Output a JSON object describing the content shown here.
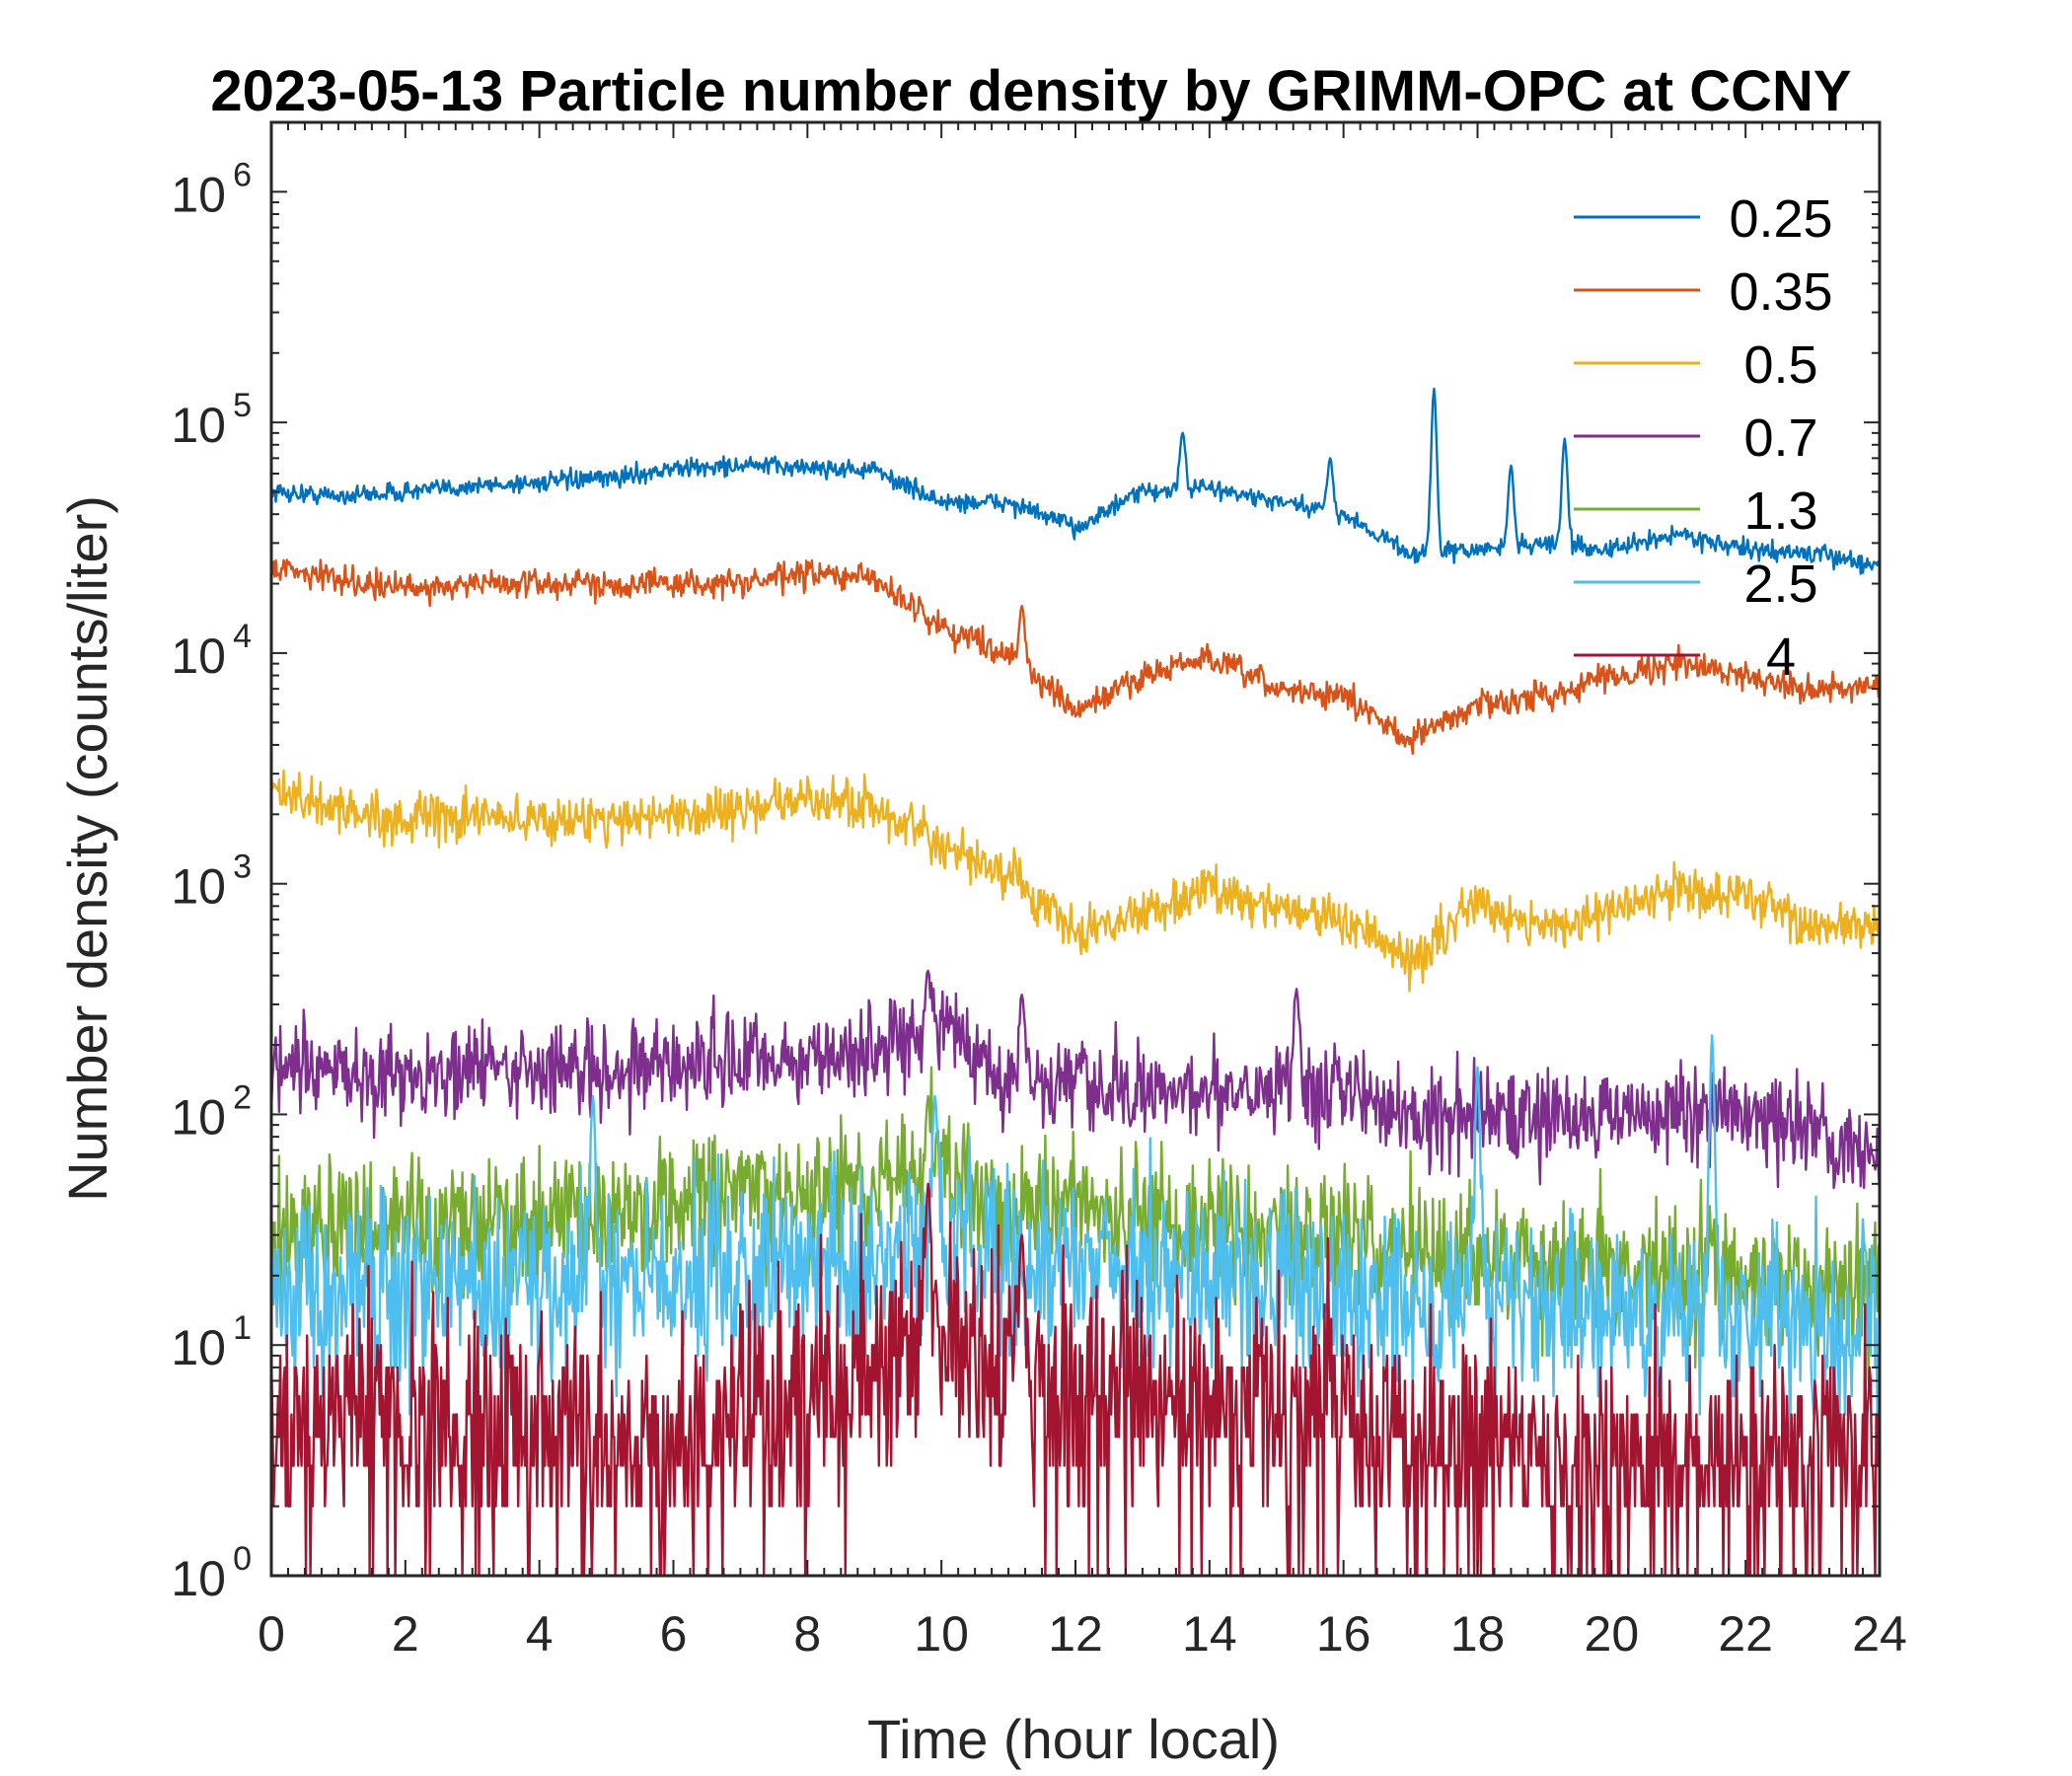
{
  "chart_data": {
    "type": "line",
    "title": "2023-05-13 Particle number density by GRIMM-OPC at CCNY",
    "xlabel": "Time (hour local)",
    "ylabel": "Number density (counts/liter)",
    "xlim": [
      0,
      24
    ],
    "ylim": [
      1,
      2000000
    ],
    "yscale": "log",
    "xticks": [
      0,
      2,
      4,
      6,
      8,
      10,
      12,
      14,
      16,
      18,
      20,
      22,
      24
    ],
    "xtick_labels": [
      "0",
      "2",
      "4",
      "6",
      "8",
      "10",
      "12",
      "14",
      "16",
      "18",
      "20",
      "22",
      "24"
    ],
    "ytick_exponents": [
      "0",
      "1",
      "2",
      "3",
      "4",
      "5",
      "6"
    ],
    "ytick_base": "10",
    "grid": false,
    "legend_position": "top-right",
    "x_hours": [
      0,
      1,
      2,
      3,
      4,
      5,
      6,
      7,
      8,
      9,
      10,
      11,
      12,
      13,
      14,
      15,
      16,
      17,
      18,
      19,
      20,
      21,
      22,
      23,
      24
    ],
    "series": [
      {
        "name": "0.25",
        "color": "#0072BD",
        "noise_decades": 0.02,
        "values": [
          50000,
          48000,
          50000,
          53000,
          55000,
          57000,
          63000,
          65000,
          64000,
          62000,
          45000,
          45000,
          35000,
          50000,
          52000,
          45000,
          40000,
          27000,
          28000,
          30000,
          28000,
          33000,
          28000,
          27000,
          24000
        ],
        "spikes": [
          [
            13.6,
            90000
          ],
          [
            15.8,
            70000
          ],
          [
            17.35,
            140000
          ],
          [
            18.5,
            65000
          ],
          [
            19.3,
            85000
          ]
        ]
      },
      {
        "name": "0.35",
        "color": "#D95319",
        "noise_decades": 0.03,
        "values": [
          24000,
          21000,
          19000,
          20000,
          20000,
          20000,
          20000,
          20000,
          22000,
          21000,
          13000,
          10000,
          5500,
          8000,
          9500,
          7000,
          6500,
          4200,
          6000,
          6500,
          8000,
          9000,
          8000,
          7000,
          7000
        ],
        "spikes": [
          [
            11.2,
            16000
          ]
        ]
      },
      {
        "name": "0.5",
        "color": "#EDB120",
        "noise_decades": 0.05,
        "values": [
          2500,
          2100,
          1900,
          1950,
          1900,
          1900,
          2000,
          2100,
          2300,
          2200,
          1400,
          1100,
          600,
          750,
          950,
          800,
          700,
          450,
          850,
          650,
          750,
          950,
          900,
          650,
          650
        ],
        "spikes": []
      },
      {
        "name": "0.7",
        "color": "#7E2F8E",
        "noise_decades": 0.1,
        "values": [
          150,
          150,
          150,
          155,
          155,
          160,
          165,
          170,
          175,
          185,
          250,
          140,
          130,
          120,
          130,
          140,
          130,
          100,
          100,
          100,
          100,
          100,
          100,
          80,
          70
        ],
        "spikes": [
          [
            9.8,
            420
          ],
          [
            11.2,
            330
          ],
          [
            15.3,
            350
          ]
        ]
      },
      {
        "name": "1.3",
        "color": "#77AC30",
        "noise_decades": 0.15,
        "values": [
          30,
          32,
          35,
          35,
          35,
          38,
          40,
          42,
          45,
          48,
          60,
          40,
          38,
          35,
          33,
          30,
          30,
          25,
          25,
          22,
          22,
          22,
          20,
          18,
          18
        ],
        "spikes": [
          [
            9.8,
            120
          ]
        ]
      },
      {
        "name": "2.5",
        "color": "#4DBEEE",
        "noise_decades": 0.2,
        "values": [
          18,
          18,
          18,
          18,
          18,
          18,
          20,
          20,
          22,
          22,
          30,
          20,
          22,
          22,
          20,
          18,
          18,
          15,
          15,
          14,
          14,
          14,
          13,
          13,
          12
        ],
        "spikes": [
          [
            4.8,
            120
          ],
          [
            9.9,
            120
          ],
          [
            18.0,
            160
          ],
          [
            21.5,
            220
          ]
        ]
      },
      {
        "name": "4",
        "color": "#A2142F",
        "noise_decades": 0.25,
        "values": [
          5,
          5,
          4,
          4,
          4,
          4,
          4,
          5,
          6,
          8,
          12,
          7,
          7,
          6,
          6,
          5,
          5,
          4,
          4,
          3,
          3,
          3,
          3,
          3,
          3
        ],
        "spikes": [
          [
            9.8,
            50
          ],
          [
            11.2,
            30
          ]
        ]
      }
    ]
  }
}
